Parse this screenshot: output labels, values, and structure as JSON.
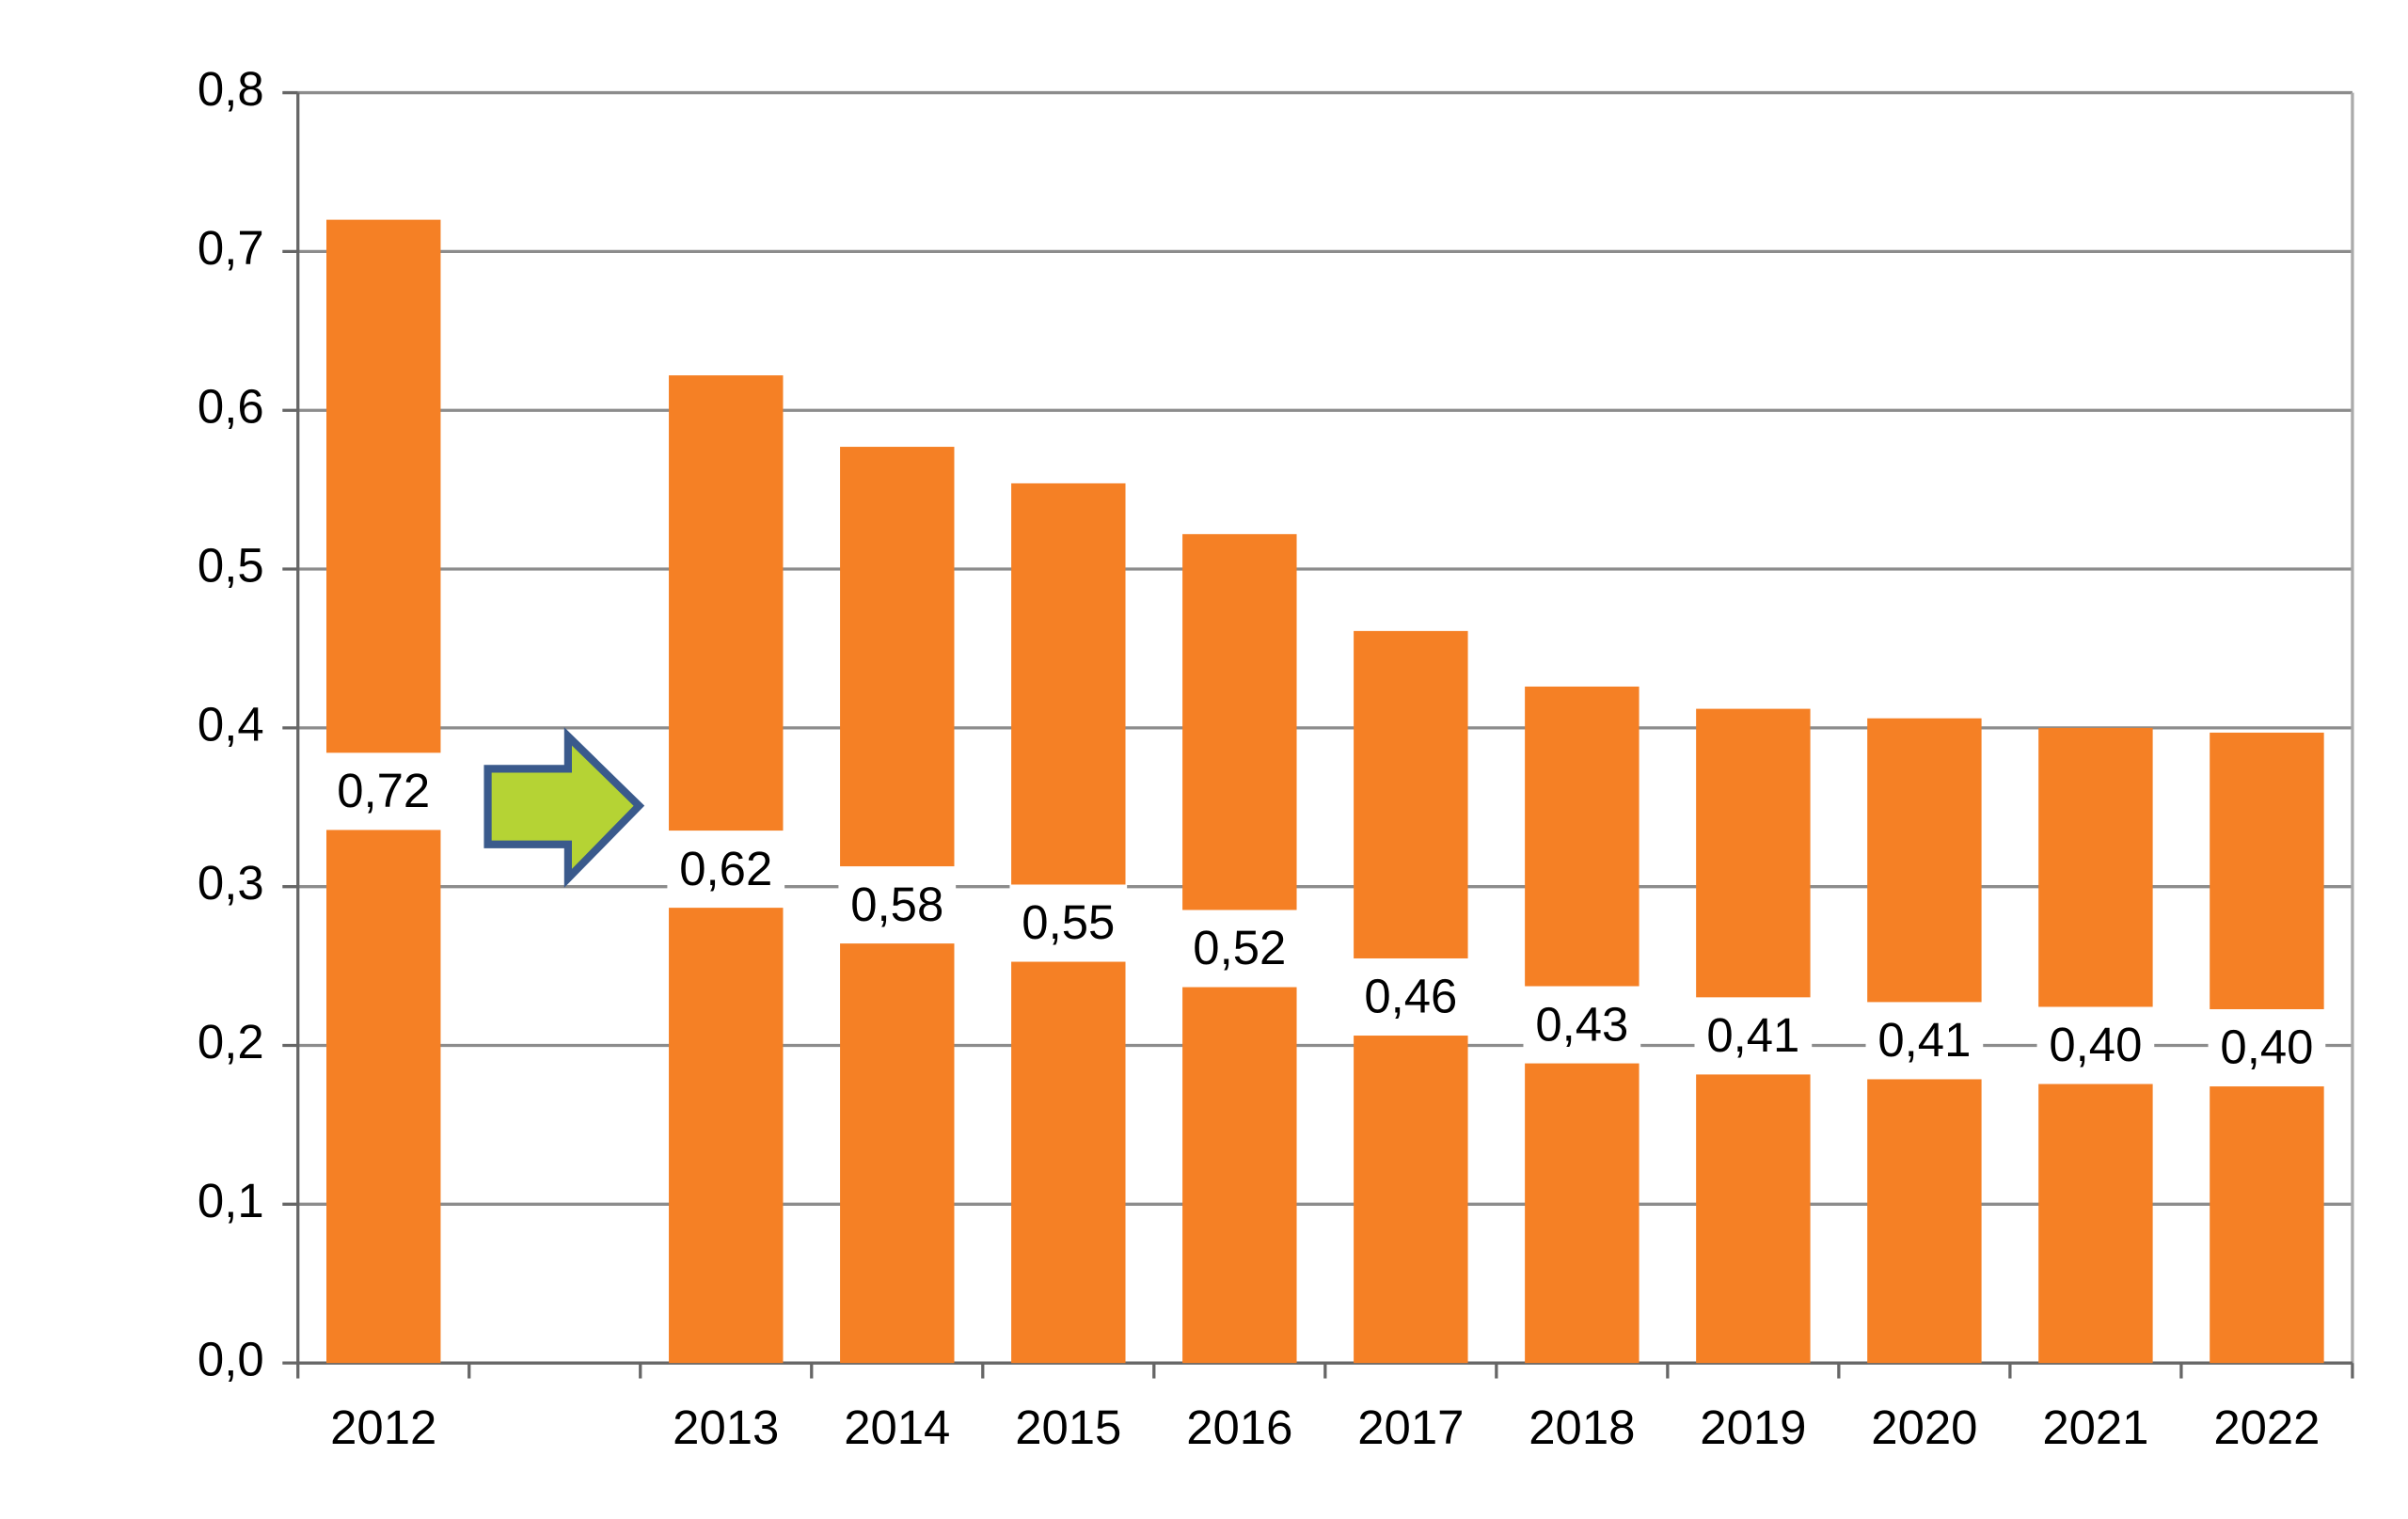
{
  "chart_data": {
    "type": "bar",
    "categories": [
      "2012",
      null,
      "2013",
      "2014",
      "2015",
      "2016",
      "2017",
      "2018",
      "2019",
      "2020",
      "2021",
      "2022"
    ],
    "values": [
      0.72,
      null,
      0.622,
      0.577,
      0.554,
      0.522,
      0.461,
      0.426,
      0.412,
      0.406,
      0.4,
      0.397
    ],
    "value_labels": [
      "0,72",
      null,
      "0,62",
      "0,58",
      "0,55",
      "0,52",
      "0,46",
      "0,43",
      "0,41",
      "0,41",
      "0,40",
      "0,40"
    ],
    "color": "#f58025",
    "ylim": [
      0,
      0.8
    ],
    "yticks": [
      {
        "value": 0,
        "label": "0,0"
      },
      {
        "value": 0.1,
        "label": "0,1"
      },
      {
        "value": 0.2,
        "label": "0,2"
      },
      {
        "value": 0.3,
        "label": "0,3"
      },
      {
        "value": 0.4,
        "label": "0,4"
      },
      {
        "value": 0.5,
        "label": "0,5"
      },
      {
        "value": 0.6,
        "label": "0,6"
      },
      {
        "value": 0.7,
        "label": "0,7"
      },
      {
        "value": 0.8,
        "label": "0,8"
      }
    ],
    "grid": true
  }
}
